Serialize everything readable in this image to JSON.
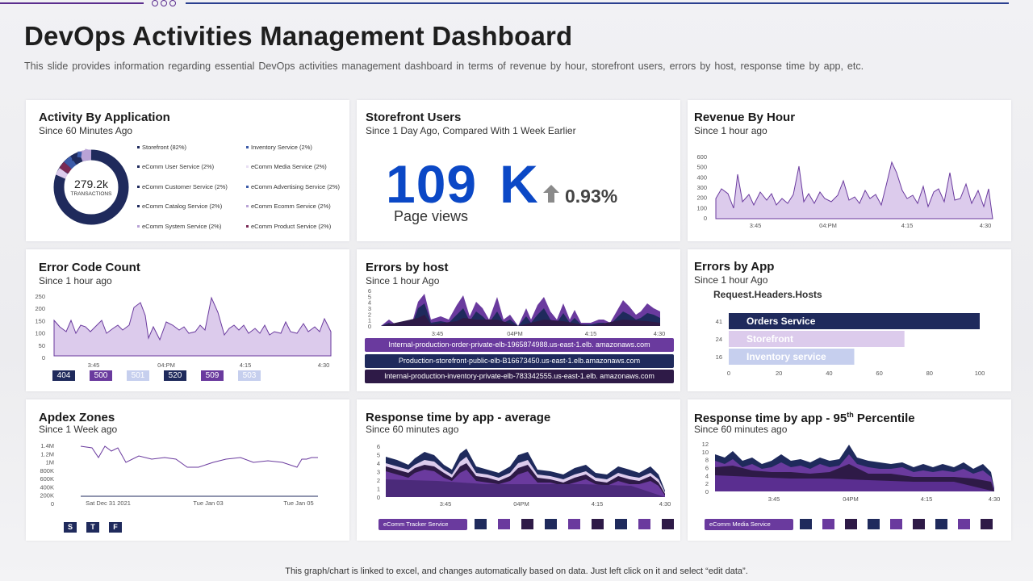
{
  "header": {
    "title": "DevOps Activities Management Dashboard",
    "subtitle": "This slide provides information regarding essential DevOps activities management dashboard in terms of revenue by hour, storefront users, errors by host, response time by app, etc."
  },
  "colors": {
    "navy": "#1f2a5c",
    "purple": "#6a3a9e",
    "lavender": "#dccbec",
    "light_blue": "#c6cfee",
    "blue_number": "#0b48c6"
  },
  "activity": {
    "title": "Activity By Application",
    "subtitle": "Since 60 Minutes Ago",
    "donut_value": "279.2k",
    "donut_label": "TRANSACTIONS",
    "legend": [
      {
        "label": "Storefront (82%)",
        "color": "#1f2a5c"
      },
      {
        "label": "Inventory Service (2%)",
        "color": "#3b5aa8"
      },
      {
        "label": "eComm User Service (2%)",
        "color": "#1f2a5c"
      },
      {
        "label": "eComm Media Service (2%)",
        "color": "#e8dff3"
      },
      {
        "label": "eComm Customer Service (2%)",
        "color": "#1f2a5c"
      },
      {
        "label": "eComm Advertising Service (2%)",
        "color": "#3b5aa8"
      },
      {
        "label": "eComm Catalog Service (2%)",
        "color": "#1f2a5c"
      },
      {
        "label": "eComm Ecomm Service (2%)",
        "color": "#b9a3d6"
      },
      {
        "label": "eComm System Service (2%)",
        "color": "#b9a3d6"
      },
      {
        "label": "eComm Product Service (2%)",
        "color": "#7a2a55"
      }
    ]
  },
  "storefront": {
    "title": "Storefront Users",
    "subtitle": "Since 1 Day Ago, Compared With 1 Week Earlier",
    "value": "109",
    "unit": "K",
    "change": "0.93%",
    "label": "Page views"
  },
  "revenue": {
    "title": "Revenue By Hour",
    "subtitle": "Since 1 hour ago",
    "y_ticks": [
      "600",
      "500",
      "400",
      "300",
      "200",
      "100",
      "0"
    ],
    "x_ticks": [
      "3:45",
      "04:PM",
      "4:15",
      "4:30"
    ]
  },
  "error_code": {
    "title": "Error Code Count",
    "subtitle": "Since 1 hour ago",
    "y_ticks": [
      "250",
      "200",
      "150",
      "100",
      "50",
      "0"
    ],
    "x_ticks": [
      "3:45",
      "04:PM",
      "4:15",
      "4:30"
    ],
    "codes": [
      {
        "label": "404",
        "color": "#1f2a5c",
        "text": "#ffffff"
      },
      {
        "label": "500",
        "color": "#6a3a9e",
        "text": "#ffffff"
      },
      {
        "label": "501",
        "color": "#c6cfee",
        "text": "#ffffff"
      },
      {
        "label": "520",
        "color": "#1f2a5c",
        "text": "#ffffff"
      },
      {
        "label": "509",
        "color": "#6a3a9e",
        "text": "#ffffff"
      },
      {
        "label": "503",
        "color": "#c6cfee",
        "text": "#ffffff"
      }
    ]
  },
  "errors_host": {
    "title": "Errors by host",
    "subtitle": "Since 1 hour Ago",
    "y_ticks": [
      "6",
      "5",
      "4",
      "3",
      "2",
      "1",
      "0"
    ],
    "x_ticks": [
      "3:45",
      "04PM",
      "4:15",
      "4:30"
    ],
    "hosts": [
      {
        "label": "Internal-production-order-private-elb-1965874988.us-east-1.elb. amazonaws.com",
        "color": "#6a3a9e"
      },
      {
        "label": "Production-storefront-public-elb-B16673450.us-east-1.elb.amazonaws.com",
        "color": "#1f2a5c"
      },
      {
        "label": "Internal-production-inventory-private-elb-783342555.us-east-1.elb. amazonaws.com",
        "color": "#2e1a47"
      }
    ]
  },
  "errors_app": {
    "title": "Errors by App",
    "subtitle": "Since 1 hour Ago",
    "chart_title": "Request.Headers.Hosts",
    "x_ticks": [
      "0",
      "20",
      "40",
      "60",
      "80",
      "100"
    ],
    "bars": [
      {
        "label": "Orders Service",
        "value": 100,
        "count": "41",
        "color": "#1f2a5c"
      },
      {
        "label": "Storefront",
        "value": 70,
        "count": "24",
        "color": "#dccbec"
      },
      {
        "label": "Inventory service",
        "value": 50,
        "count": "16",
        "color": "#c6cfee"
      }
    ]
  },
  "apdex": {
    "title": "Apdex Zones",
    "subtitle": "Since 1 Week ago",
    "y_ticks": [
      "1.4M",
      "1.2M",
      "1M",
      "800K",
      "600K",
      "400K",
      "200K",
      "0"
    ],
    "x_ticks": [
      "Sat Dec 31   2021",
      "Tue Jan 03",
      "Tue Jan 05"
    ],
    "buttons": [
      "S",
      "T",
      "F"
    ]
  },
  "response_avg": {
    "title": "Response time by app - average",
    "subtitle": "Since 60 minutes ago",
    "y_ticks": [
      "6",
      "5",
      "4",
      "3",
      "2",
      "1",
      "0"
    ],
    "x_ticks": [
      "3:45",
      "04PM",
      "4:15",
      "4:30"
    ],
    "legend_label": "eComm Tracker Service"
  },
  "response_95": {
    "title_main": "Response time by app - 95",
    "title_sup": "th",
    "title_tail": " Percentile",
    "subtitle": "Since 60 minutes ago",
    "y_ticks": [
      "12",
      "10",
      "8",
      "6",
      "4",
      "2",
      "0"
    ],
    "x_ticks": [
      "3:45",
      "04PM",
      "4:15",
      "4:30"
    ],
    "legend_label": "eComm Media Service"
  },
  "footer": "This graph/chart is linked to excel, and changes automatically based on data. Just left click on it and select “edit data”."
}
